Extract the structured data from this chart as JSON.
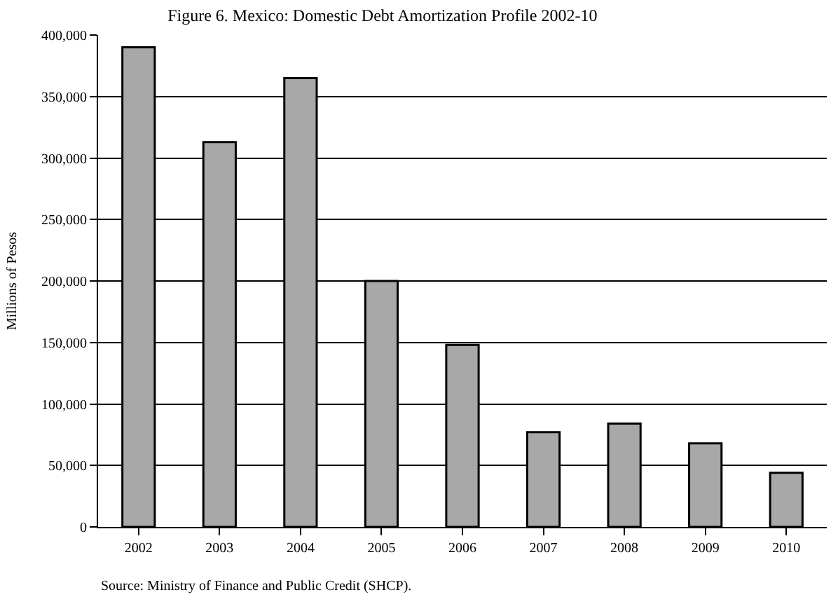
{
  "chart_data": {
    "type": "bar",
    "title": "Figure 6. Mexico: Domestic Debt Amortization Profile 2002-10",
    "ylabel": "Millions of Pesos",
    "categories": [
      "2002",
      "2003",
      "2004",
      "2005",
      "2006",
      "2007",
      "2008",
      "2009",
      "2010"
    ],
    "values": [
      390000,
      313000,
      365000,
      200000,
      148000,
      77000,
      84000,
      68000,
      44000
    ],
    "color": "#a8a8a8",
    "ylim": [
      0,
      400000
    ],
    "yticks": [
      {
        "value": 0,
        "label": "0"
      },
      {
        "value": 50000,
        "label": "50,000"
      },
      {
        "value": 100000,
        "label": "100,000"
      },
      {
        "value": 150000,
        "label": "150,000"
      },
      {
        "value": 200000,
        "label": "200,000"
      },
      {
        "value": 250000,
        "label": "250,000"
      },
      {
        "value": 300000,
        "label": "300,000"
      },
      {
        "value": 350000,
        "label": "350,000"
      },
      {
        "value": 400000,
        "label": "400,000"
      }
    ],
    "grid": "y",
    "annotations": [
      "Source: Ministry of Finance and Public Credit (SHCP)."
    ]
  }
}
